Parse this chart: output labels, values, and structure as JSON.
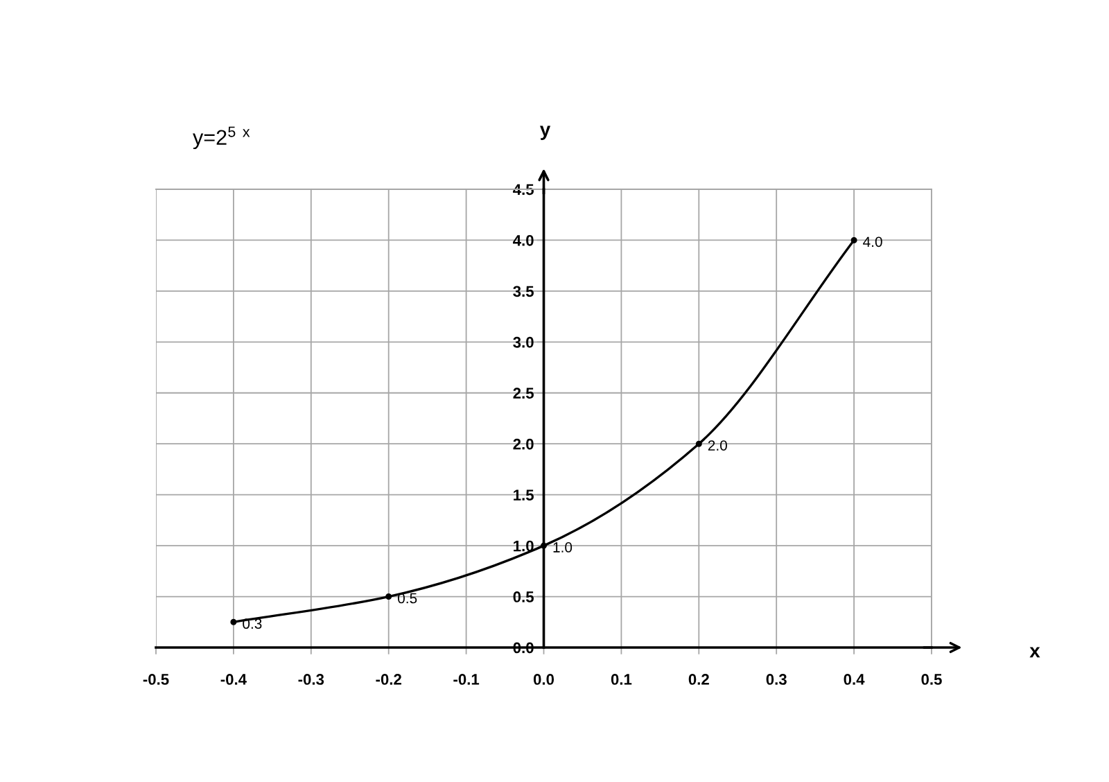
{
  "chart_data": {
    "type": "line",
    "title": "y=2$^{5}$ $^{x}$",
    "xlabel": "x",
    "ylabel": "y",
    "x": [
      -0.4,
      -0.2,
      0,
      0.2,
      0.4
    ],
    "series": [
      {
        "color": "#000000",
        "values": [
          0.25,
          0.5,
          1.0,
          2.0,
          4.0
        ],
        "value_labels": [
          "0.3",
          "0.5",
          "1.0",
          "2.0",
          "4.0"
        ]
      }
    ],
    "xlim": [
      -0.5,
      0.5
    ],
    "ylim": [
      0,
      4.5
    ],
    "xticks": [
      -0.5,
      -0.4,
      -0.3,
      -0.2,
      -0.1,
      {
        "value": 0,
        "label": "0.0"
      },
      0.1,
      0.2,
      0.3,
      0.4,
      0.5
    ],
    "yticks": [
      {
        "value": 0,
        "label": "0.0"
      },
      0.5,
      {
        "value": 1,
        "label": "1.0"
      },
      1.5,
      {
        "value": 2,
        "label": "2.0"
      },
      2.5,
      {
        "value": 3,
        "label": "3.0"
      },
      3.5,
      {
        "value": 4,
        "label": "4.0"
      },
      4.5
    ],
    "grid": true,
    "marker": "circle",
    "line_style": "solid"
  }
}
